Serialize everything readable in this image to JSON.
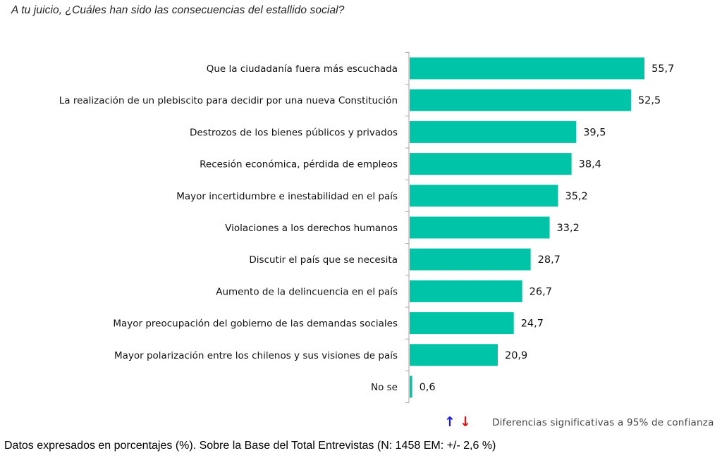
{
  "chart_data": {
    "type": "bar",
    "orientation": "horizontal",
    "title": "A tu juicio, ¿Cuáles han sido las consecuencias del estallido social?",
    "xlabel": "",
    "ylabel": "",
    "xlim": [
      0,
      60
    ],
    "grid": false,
    "bar_color": "#00c4a7",
    "categories": [
      "Que la ciudadanía fuera más escuchada",
      "La realización de un plebiscito para decidir por una nueva Constitución",
      "Destrozos de los bienes públicos y privados",
      "Recesión económica, pérdida de empleos",
      "Mayor incertidumbre e inestabilidad en el país",
      "Violaciones a los derechos humanos",
      "Discutir el país que se necesita",
      "Aumento de la delincuencia en el país",
      "Mayor preocupación del gobierno de las demandas sociales",
      "Mayor polarización entre los chilenos y sus visiones de país",
      "No se"
    ],
    "values": [
      55.7,
      52.5,
      39.5,
      38.4,
      35.2,
      33.2,
      28.7,
      26.7,
      24.7,
      20.9,
      0.6
    ],
    "value_labels": [
      "55,7",
      "52,5",
      "39,5",
      "38,4",
      "35,2",
      "33,2",
      "28,7",
      "26,7",
      "24,7",
      "20,9",
      "0,6"
    ]
  },
  "legend": {
    "up_icon": "arrow-up-icon",
    "up_glyph": "🡑",
    "up_color": "#1a1ae6",
    "down_icon": "arrow-down-icon",
    "down_glyph": "🡓",
    "down_color": "#e01010",
    "text": "Diferencias  significativas a 95% de confianza"
  },
  "footnote": "Datos expresados en porcentajes (%). Sobre la Base del Total Entrevistas (N: 1458  EM: +/- 2,6 %)"
}
